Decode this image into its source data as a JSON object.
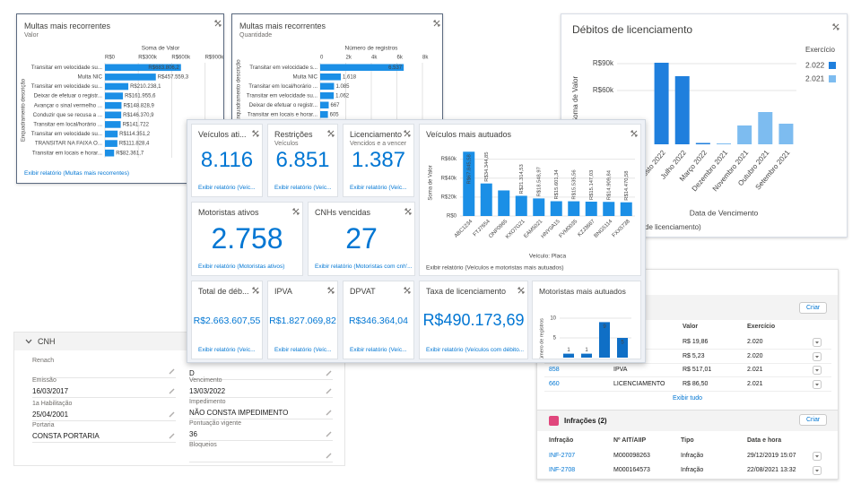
{
  "value_panel": {
    "title": "Multas mais recorrentes",
    "subtitle": "Valor",
    "axis_title": "Soma de Valor",
    "y_axis_title": "Enquadramento descrição",
    "xlim": [
      0,
      1000000
    ],
    "xticks": [
      {
        "value": 0,
        "label": "R$0"
      },
      {
        "value": 300000,
        "label": "R$300k"
      },
      {
        "value": 600000,
        "label": "R$600k"
      },
      {
        "value": 900000,
        "label": "R$900k"
      }
    ],
    "categories": [
      "Transitar em velocidade su...",
      "Multa NIC",
      "Transitar em velocidade su...",
      "Deixar de efetuar o registr...",
      "Avançar o sinal vermelho ...",
      "Conduzir que se recusa a ...",
      "Transitar em local/horário ...",
      "Transitar em velocidade su...",
      "TRANSITAR NA FAIXA O...",
      "Transitar em locais e horar..."
    ],
    "values": [
      683806.2,
      457559.3,
      210238.1,
      161955.6,
      148828.9,
      146370.9,
      141722,
      114351.2,
      111828.4,
      82361.7
    ],
    "value_labels": [
      "R$683.806,2",
      "R$457.559,3",
      "R$210.238,1",
      "R$161.955,6",
      "R$148.828,9",
      "R$146.370,9",
      "R$141.722",
      "R$114.351,2",
      "R$111.828,4",
      "R$82.361,7"
    ],
    "link": "Exibir relatório (Multas mais recorrentes)"
  },
  "count_panel": {
    "title": "Multas mais recorrentes",
    "subtitle": "Quantidade",
    "axis_title": "Número de registros",
    "y_axis_title": "Enquadramento descrição",
    "xlim": [
      0,
      8000
    ],
    "xticks": [
      0,
      {
        "value": 2000,
        "label": "2k"
      },
      {
        "value": 4000,
        "label": "4k"
      },
      {
        "value": 6000,
        "label": "6k"
      },
      {
        "value": 8000,
        "label": "8k"
      }
    ],
    "categories": [
      "Transitar em velocidade s...",
      "Multa NIC",
      "Transitar em local/horário ...",
      "Transitar em velocidade su...",
      "Deixar de efetuar o registr...",
      "Transitar em locais e horar..."
    ],
    "values": [
      6537,
      1618,
      1085,
      1062,
      667,
      605
    ],
    "value_labels": [
      "6.537",
      "1.618",
      "1.085",
      "1.062",
      "667",
      "605"
    ]
  },
  "licensing": {
    "title": "Débitos de licenciamento",
    "y_axis_title": "Soma de Valor",
    "x_axis_title": "Data de Vencimento",
    "legend_title": "Exercício",
    "ylim": [
      0,
      100000
    ],
    "yticks": [
      {
        "value": 60000,
        "label": "R$60k"
      },
      {
        "value": 90000,
        "label": "R$90k"
      }
    ],
    "categories": [
      "Agosto 2022",
      "Julho 2022",
      "Março 2022",
      "Dezembro 2021",
      "Novembro 2021",
      "Outubro 2021",
      "Setembro 2021"
    ],
    "series": [
      {
        "name": "2.022",
        "color": "#1f7fdd",
        "values": [
          91000,
          76000,
          1500,
          null,
          null,
          null,
          null
        ]
      },
      {
        "name": "2.021",
        "color": "#7dbcf0",
        "values": [
          null,
          null,
          null,
          1000,
          21000,
          36000,
          23000
        ]
      }
    ],
    "link": "de licenciamento)"
  },
  "tiles": [
    {
      "title": "Veículos ati...",
      "value": "8.116",
      "link": "Exibir relatório (Veíc..."
    },
    {
      "title": "Restrições",
      "subtitle": "Veículos",
      "value": "6.851",
      "link": "Exibir relatório (Veíc..."
    },
    {
      "title": "Licenciamento",
      "subtitle": "Vencidos e a vencer",
      "value": "1.387",
      "link": "Exibir relatório (Veíc..."
    },
    {
      "title": "Motoristas ativos",
      "value": "2.758",
      "link": "Exibir relatório (Motoristas ativos)"
    },
    {
      "title": "CNHs vencidas",
      "value": "27",
      "link": "Exibir relatório (Motoristas com cnh'..."
    },
    {
      "title": "Total de déb...",
      "value": "R$2.663.607,55",
      "link": "Exibir relatório (Veíc..."
    },
    {
      "title": "IPVA",
      "value": "R$1.827.069,82",
      "link": "Exibir relatório (Veíc..."
    },
    {
      "title": "DPVAT",
      "value": "R$346.364,04",
      "link": "Exibir relatório (Veíc..."
    },
    {
      "title": "Taxa de licenciamento",
      "value": "R$490.173,69",
      "link": "Exibir relatório (Veículos com débito..."
    }
  ],
  "top_vehicles": {
    "title": "Veículos mais autuados",
    "y_axis_title": "Soma de Valor",
    "x_axis_title": "Veículo: Placa",
    "ylim": [
      0,
      70000
    ],
    "yticks": [
      {
        "value": 0,
        "label": "R$0"
      },
      {
        "value": 20000,
        "label": "R$20k"
      },
      {
        "value": 40000,
        "label": "R$40k"
      },
      {
        "value": 60000,
        "label": "R$60k"
      }
    ],
    "categories": [
      "ABC1234",
      "FTJ7654",
      "ONP0965",
      "KXO7G21",
      "EAM5021",
      "HNY0A15",
      "FVM0035",
      "KZJ3667",
      "BNG5114",
      "FXX5738"
    ],
    "values": [
      67845.58,
      34344.85,
      27000,
      21314.53,
      18548.97,
      15601.34,
      15535.56,
      15147.03,
      14909.84,
      14470.58
    ],
    "value_labels": [
      "R$67.845,58",
      "R$34.344,85",
      null,
      "R$21.314,53",
      "R$18.548,97",
      "R$15.601,34",
      "R$15.535,56",
      "R$15.147,03",
      "R$14.909,84",
      "R$14.470,58"
    ],
    "link": "Exibir relatório (Veículos e motoristas mais autuados)"
  },
  "top_drivers": {
    "title": "Motoristas mais autuados",
    "y_axis_title": "Número de registros",
    "ylim": [
      0,
      10
    ],
    "yticks": [
      5,
      10
    ],
    "values": [
      1,
      1,
      9,
      5
    ]
  },
  "cnh": {
    "title": "CNH",
    "left": [
      {
        "label": "Renach"
      },
      {
        "label": "Emissão",
        "value": "16/03/2017"
      },
      {
        "label": "1a Habilitação",
        "value": "25/04/2001"
      },
      {
        "label": "Portaria",
        "value": "CONSTA PORTARIA"
      }
    ],
    "right": [
      {
        "value": "D"
      },
      {
        "label": "Vencimento",
        "value": "13/03/2022"
      },
      {
        "label": "Impedimento",
        "value": "NÃO CONSTA IMPEDIMENTO"
      },
      {
        "label": "Pontuação vigente",
        "value": "36"
      },
      {
        "label": "Bloqueios"
      }
    ]
  },
  "related": {
    "debts": {
      "button": "Criar",
      "columns": [
        "Valor",
        "Exercício"
      ],
      "rows": [
        {
          "value": "R$ 19,86",
          "year": "2.020"
        },
        {
          "value": "R$ 5,23",
          "year": "2.020"
        },
        {
          "id": "858",
          "type": "IPVA",
          "value": "R$ 517,01",
          "year": "2.021"
        },
        {
          "id": "660",
          "type": "LICENCIAMENTO",
          "value": "R$ 86,50",
          "year": "2.021"
        }
      ],
      "view_all": "Exibir tudo"
    },
    "infractions": {
      "title": "Infrações (2)",
      "button": "Criar",
      "columns": [
        "Infração",
        "Nº AIT/AIIP",
        "Tipo",
        "Data e hora"
      ],
      "rows": [
        [
          "INF-2707",
          "M000098263",
          "Infração",
          "29/12/2019 15:07"
        ],
        [
          "INF-2708",
          "M000164573",
          "Infração",
          "22/08/2021 13:32"
        ]
      ]
    }
  }
}
